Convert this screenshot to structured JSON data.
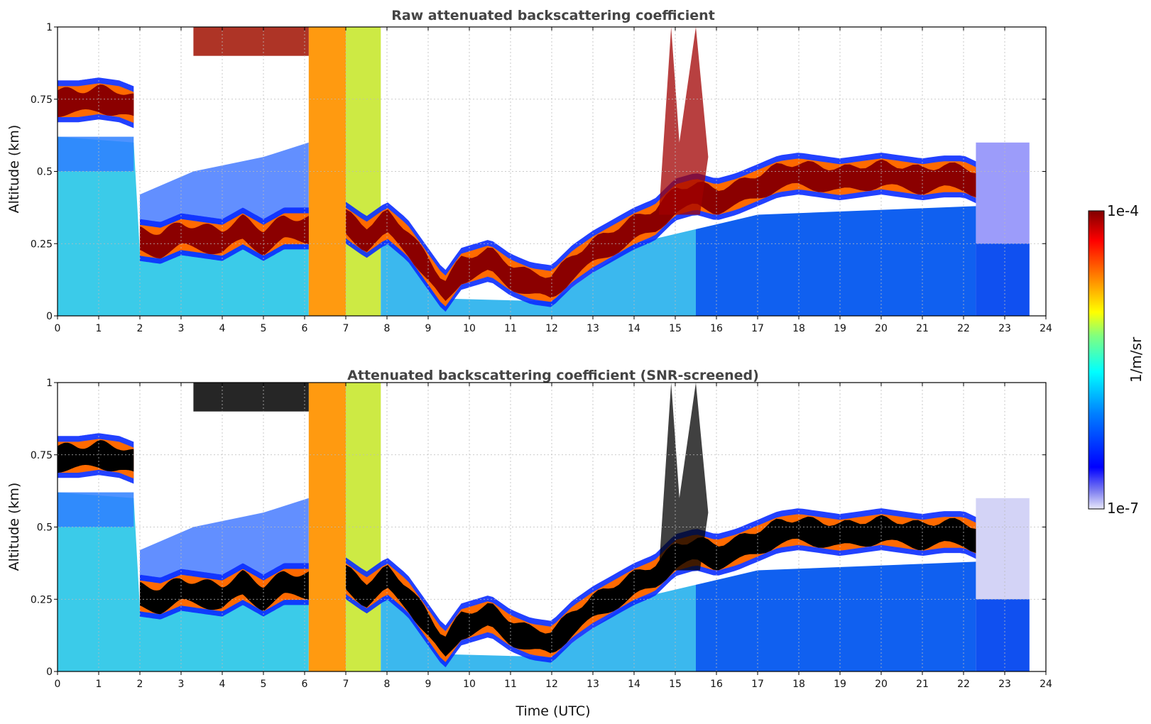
{
  "chart_data": [
    {
      "type": "heatmap",
      "title": "Raw attenuated backscattering coefficient",
      "xlabel": "",
      "ylabel": "Altitude (km)",
      "xlim": [
        0,
        24
      ],
      "ylim": [
        0,
        1
      ],
      "xticks": [
        "0",
        "1",
        "2",
        "3",
        "4",
        "5",
        "6",
        "7",
        "8",
        "9",
        "10",
        "11",
        "12",
        "13",
        "14",
        "15",
        "16",
        "17",
        "18",
        "19",
        "20",
        "21",
        "22",
        "23",
        "24"
      ],
      "yticks": [
        "0",
        "0.25",
        "0.5",
        "0.75",
        "1"
      ],
      "screened": false,
      "layers": [
        {
          "name": "cloud-layer-1",
          "t": [
            0,
            0.5,
            1.0,
            1.5,
            1.85
          ],
          "alt": [
            0.74,
            0.74,
            0.75,
            0.74,
            0.72
          ]
        },
        {
          "name": "cloud-layer-2",
          "t": [
            2.0,
            2.5,
            3.0,
            3.5,
            4.0,
            4.5,
            5.0,
            5.5,
            6.1
          ],
          "alt": [
            0.26,
            0.25,
            0.28,
            0.27,
            0.26,
            0.3,
            0.26,
            0.3,
            0.3
          ]
        },
        {
          "name": "cloud-layer-3",
          "t": [
            7.0,
            7.5,
            8.0,
            8.5,
            9.0,
            9.4,
            9.8,
            10.5,
            11.0,
            11.5,
            12.0,
            12.5,
            13.0,
            13.5,
            14.0,
            14.5,
            15.0,
            15.5,
            16.0,
            16.5,
            17.0,
            17.5,
            18.0,
            18.5,
            19.0,
            19.5,
            20.0,
            20.5,
            21.0,
            21.5,
            22.0,
            22.3
          ],
          "alt": [
            0.32,
            0.27,
            0.32,
            0.26,
            0.16,
            0.08,
            0.16,
            0.19,
            0.14,
            0.11,
            0.1,
            0.17,
            0.22,
            0.26,
            0.3,
            0.33,
            0.4,
            0.42,
            0.4,
            0.42,
            0.45,
            0.48,
            0.49,
            0.48,
            0.47,
            0.48,
            0.49,
            0.48,
            0.47,
            0.48,
            0.48,
            0.46
          ]
        }
      ]
    },
    {
      "type": "heatmap",
      "title": "Attenuated backscattering coefficient (SNR-screened)",
      "xlabel": "Time (UTC)",
      "ylabel": "Altitude (km)",
      "xlim": [
        0,
        24
      ],
      "ylim": [
        0,
        1
      ],
      "xticks": [
        "0",
        "1",
        "2",
        "3",
        "4",
        "5",
        "6",
        "7",
        "8",
        "9",
        "10",
        "11",
        "12",
        "13",
        "14",
        "15",
        "16",
        "17",
        "18",
        "19",
        "20",
        "21",
        "22",
        "23",
        "24"
      ],
      "yticks": [
        "0",
        "0.25",
        "0.5",
        "0.75",
        "1"
      ],
      "screened": true,
      "layers": [
        {
          "name": "cloud-layer-1",
          "t": [
            0,
            0.5,
            1.0,
            1.5,
            1.85
          ],
          "alt": [
            0.74,
            0.74,
            0.75,
            0.74,
            0.72
          ]
        },
        {
          "name": "cloud-layer-2",
          "t": [
            2.0,
            2.5,
            3.0,
            3.5,
            4.0,
            4.5,
            5.0,
            5.5,
            6.1
          ],
          "alt": [
            0.26,
            0.25,
            0.28,
            0.27,
            0.26,
            0.3,
            0.26,
            0.3,
            0.3
          ]
        },
        {
          "name": "cloud-layer-3",
          "t": [
            7.0,
            7.5,
            8.0,
            8.5,
            9.0,
            9.4,
            9.8,
            10.5,
            11.0,
            11.5,
            12.0,
            12.5,
            13.0,
            13.5,
            14.0,
            14.5,
            15.0,
            15.5,
            16.0,
            16.5,
            17.0,
            17.5,
            18.0,
            18.5,
            19.0,
            19.5,
            20.0,
            20.5,
            21.0,
            21.5,
            22.0,
            22.3
          ],
          "alt": [
            0.32,
            0.27,
            0.32,
            0.26,
            0.16,
            0.08,
            0.16,
            0.19,
            0.14,
            0.11,
            0.1,
            0.17,
            0.22,
            0.26,
            0.3,
            0.33,
            0.4,
            0.42,
            0.4,
            0.42,
            0.45,
            0.48,
            0.49,
            0.48,
            0.47,
            0.48,
            0.49,
            0.48,
            0.47,
            0.48,
            0.48,
            0.46
          ]
        }
      ]
    }
  ],
  "colorbar": {
    "max_label": "1e-4",
    "min_label": "1e-7",
    "units": "1/m/sr",
    "colors": [
      "#800000",
      "#ff0000",
      "#ff8000",
      "#ffff00",
      "#80ff80",
      "#00ffff",
      "#0080ff",
      "#0000ff",
      "#e8e8fa"
    ]
  }
}
